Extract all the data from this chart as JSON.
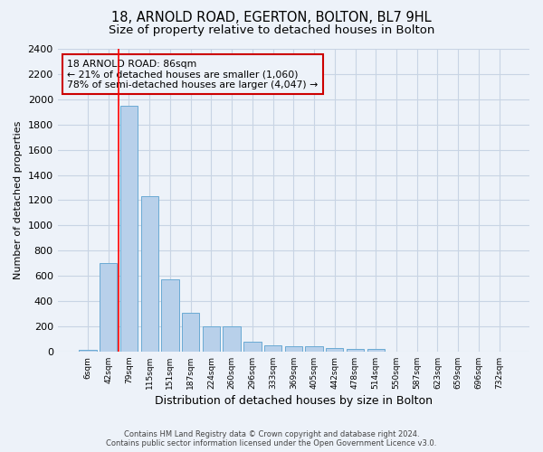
{
  "title": "18, ARNOLD ROAD, EGERTON, BOLTON, BL7 9HL",
  "subtitle": "Size of property relative to detached houses in Bolton",
  "xlabel": "Distribution of detached houses by size in Bolton",
  "ylabel": "Number of detached properties",
  "bar_labels": [
    "6sqm",
    "42sqm",
    "79sqm",
    "115sqm",
    "151sqm",
    "187sqm",
    "224sqm",
    "260sqm",
    "296sqm",
    "333sqm",
    "369sqm",
    "405sqm",
    "442sqm",
    "478sqm",
    "514sqm",
    "550sqm",
    "587sqm",
    "623sqm",
    "659sqm",
    "696sqm",
    "732sqm"
  ],
  "bar_values": [
    15,
    700,
    1950,
    1230,
    575,
    305,
    200,
    200,
    80,
    50,
    40,
    40,
    25,
    20,
    20,
    0,
    0,
    0,
    0,
    0,
    0
  ],
  "bar_color": "#b8d0ea",
  "bar_edge_color": "#6aaad4",
  "grid_color": "#c8d4e4",
  "background_color": "#edf2f9",
  "red_line_x": 1.5,
  "annotation_text": "18 ARNOLD ROAD: 86sqm\n← 21% of detached houses are smaller (1,060)\n78% of semi-detached houses are larger (4,047) →",
  "annotation_box_color": "#cc0000",
  "ylim": [
    0,
    2400
  ],
  "yticks": [
    0,
    200,
    400,
    600,
    800,
    1000,
    1200,
    1400,
    1600,
    1800,
    2000,
    2200,
    2400
  ],
  "footer_line1": "Contains HM Land Registry data © Crown copyright and database right 2024.",
  "footer_line2": "Contains public sector information licensed under the Open Government Licence v3.0.",
  "title_fontsize": 10.5,
  "subtitle_fontsize": 9.5,
  "bar_width": 0.85
}
